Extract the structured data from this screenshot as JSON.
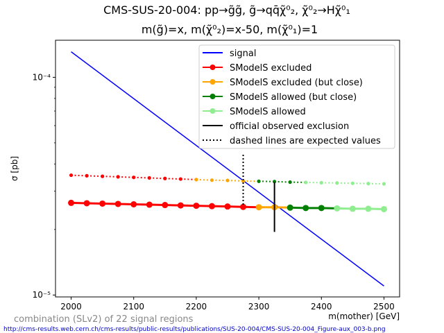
{
  "chart_data": {
    "type": "line",
    "title_line1": "CMS-SUS-20-004: pp→g̃g̃, g̃→qq̄χ̃⁰₂, χ̃⁰₂→Hχ̃⁰₁",
    "title_line2": "m(g̃)=x, m(χ̃⁰₂)=x-50, m(χ̃⁰₁)=1",
    "xlabel": "m(mother) [GeV]",
    "ylabel": "σ [pb]",
    "xlim": [
      1975,
      2525
    ],
    "ylim": [
      9.8e-06,
      0.000148
    ],
    "yscale": "log",
    "x_ticks": [
      2000,
      2100,
      2200,
      2300,
      2400,
      2500
    ],
    "y_ticks": [
      {
        "value": 0.0001,
        "label": "10⁻⁴"
      },
      {
        "value": 1e-05,
        "label": "10⁻⁵"
      }
    ],
    "legend_position": "upper right",
    "legend": [
      {
        "label": "signal",
        "color": "#0000ff",
        "style": "solid"
      },
      {
        "label": "SModelS excluded",
        "color": "#ff0000",
        "style": "marker"
      },
      {
        "label": "SModelS excluded (but close)",
        "color": "#ffa500",
        "style": "marker"
      },
      {
        "label": "SModelS allowed (but close)",
        "color": "#008000",
        "style": "marker"
      },
      {
        "label": "SModelS allowed",
        "color": "#90ee90",
        "style": "marker"
      },
      {
        "label": "official observed exclusion",
        "color": "#000000",
        "style": "solid"
      },
      {
        "label": "dashed lines are expected values",
        "color": "#000000",
        "style": "dotted"
      }
    ],
    "series": [
      {
        "name": "signal",
        "color": "#0000ff",
        "x": [
          2000,
          2500
        ],
        "y": [
          0.000131,
          1.1e-05
        ]
      },
      {
        "name": "observed upper limit",
        "x": [
          2000,
          2025,
          2050,
          2075,
          2100,
          2125,
          2150,
          2175,
          2200,
          2225,
          2250,
          2275,
          2300,
          2325,
          2350,
          2375,
          2400,
          2425,
          2450,
          2475,
          2500
        ],
        "y": [
          2.65e-05,
          2.64e-05,
          2.63e-05,
          2.62e-05,
          2.61e-05,
          2.6e-05,
          2.59e-05,
          2.58e-05,
          2.57e-05,
          2.56e-05,
          2.55e-05,
          2.54e-05,
          2.53e-05,
          2.53e-05,
          2.52e-05,
          2.51e-05,
          2.51e-05,
          2.5e-05,
          2.49e-05,
          2.49e-05,
          2.48e-05
        ],
        "status": [
          "excluded",
          "excluded",
          "excluded",
          "excluded",
          "excluded",
          "excluded",
          "excluded",
          "excluded",
          "excluded",
          "excluded",
          "excluded",
          "excluded",
          "excluded_close",
          "excluded_close",
          "allowed_close",
          "allowed_close",
          "allowed_close",
          "allowed",
          "allowed",
          "allowed",
          "allowed"
        ]
      },
      {
        "name": "expected upper limit",
        "x": [
          2000,
          2025,
          2050,
          2075,
          2100,
          2125,
          2150,
          2175,
          2200,
          2225,
          2250,
          2275,
          2300,
          2325,
          2350,
          2375,
          2400,
          2425,
          2450,
          2475,
          2500
        ],
        "y": [
          3.55e-05,
          3.53e-05,
          3.51e-05,
          3.49e-05,
          3.47e-05,
          3.45e-05,
          3.43e-05,
          3.41e-05,
          3.39e-05,
          3.37e-05,
          3.36e-05,
          3.34e-05,
          3.33e-05,
          3.32e-05,
          3.3e-05,
          3.29e-05,
          3.28e-05,
          3.27e-05,
          3.26e-05,
          3.25e-05,
          3.24e-05
        ],
        "status": [
          "excluded",
          "excluded",
          "excluded",
          "excluded",
          "excluded",
          "excluded",
          "excluded",
          "excluded",
          "excluded_close",
          "excluded_close",
          "excluded_close",
          "excluded_close",
          "allowed_close",
          "allowed_close",
          "allowed_close",
          "allowed",
          "allowed",
          "allowed",
          "allowed",
          "allowed",
          "allowed"
        ]
      }
    ],
    "official_observed_exclusion": {
      "x": 2325,
      "y_range": [
        1.95e-05,
        3.3e-05
      ]
    },
    "official_expected_exclusion": {
      "x": 2275,
      "y_range": [
        2.6e-05,
        4.5e-05
      ]
    },
    "status_colors": {
      "excluded": "#ff0000",
      "excluded_close": "#ffa500",
      "allowed_close": "#008000",
      "allowed": "#90ee90"
    },
    "footer_note": "combination (SLv2) of 22 signal regions",
    "footer_url": "http://cms-results.web.cern.ch/cms-results/public-results/publications/SUS-20-004/CMS-SUS-20-004_Figure-aux_003-b.png"
  }
}
